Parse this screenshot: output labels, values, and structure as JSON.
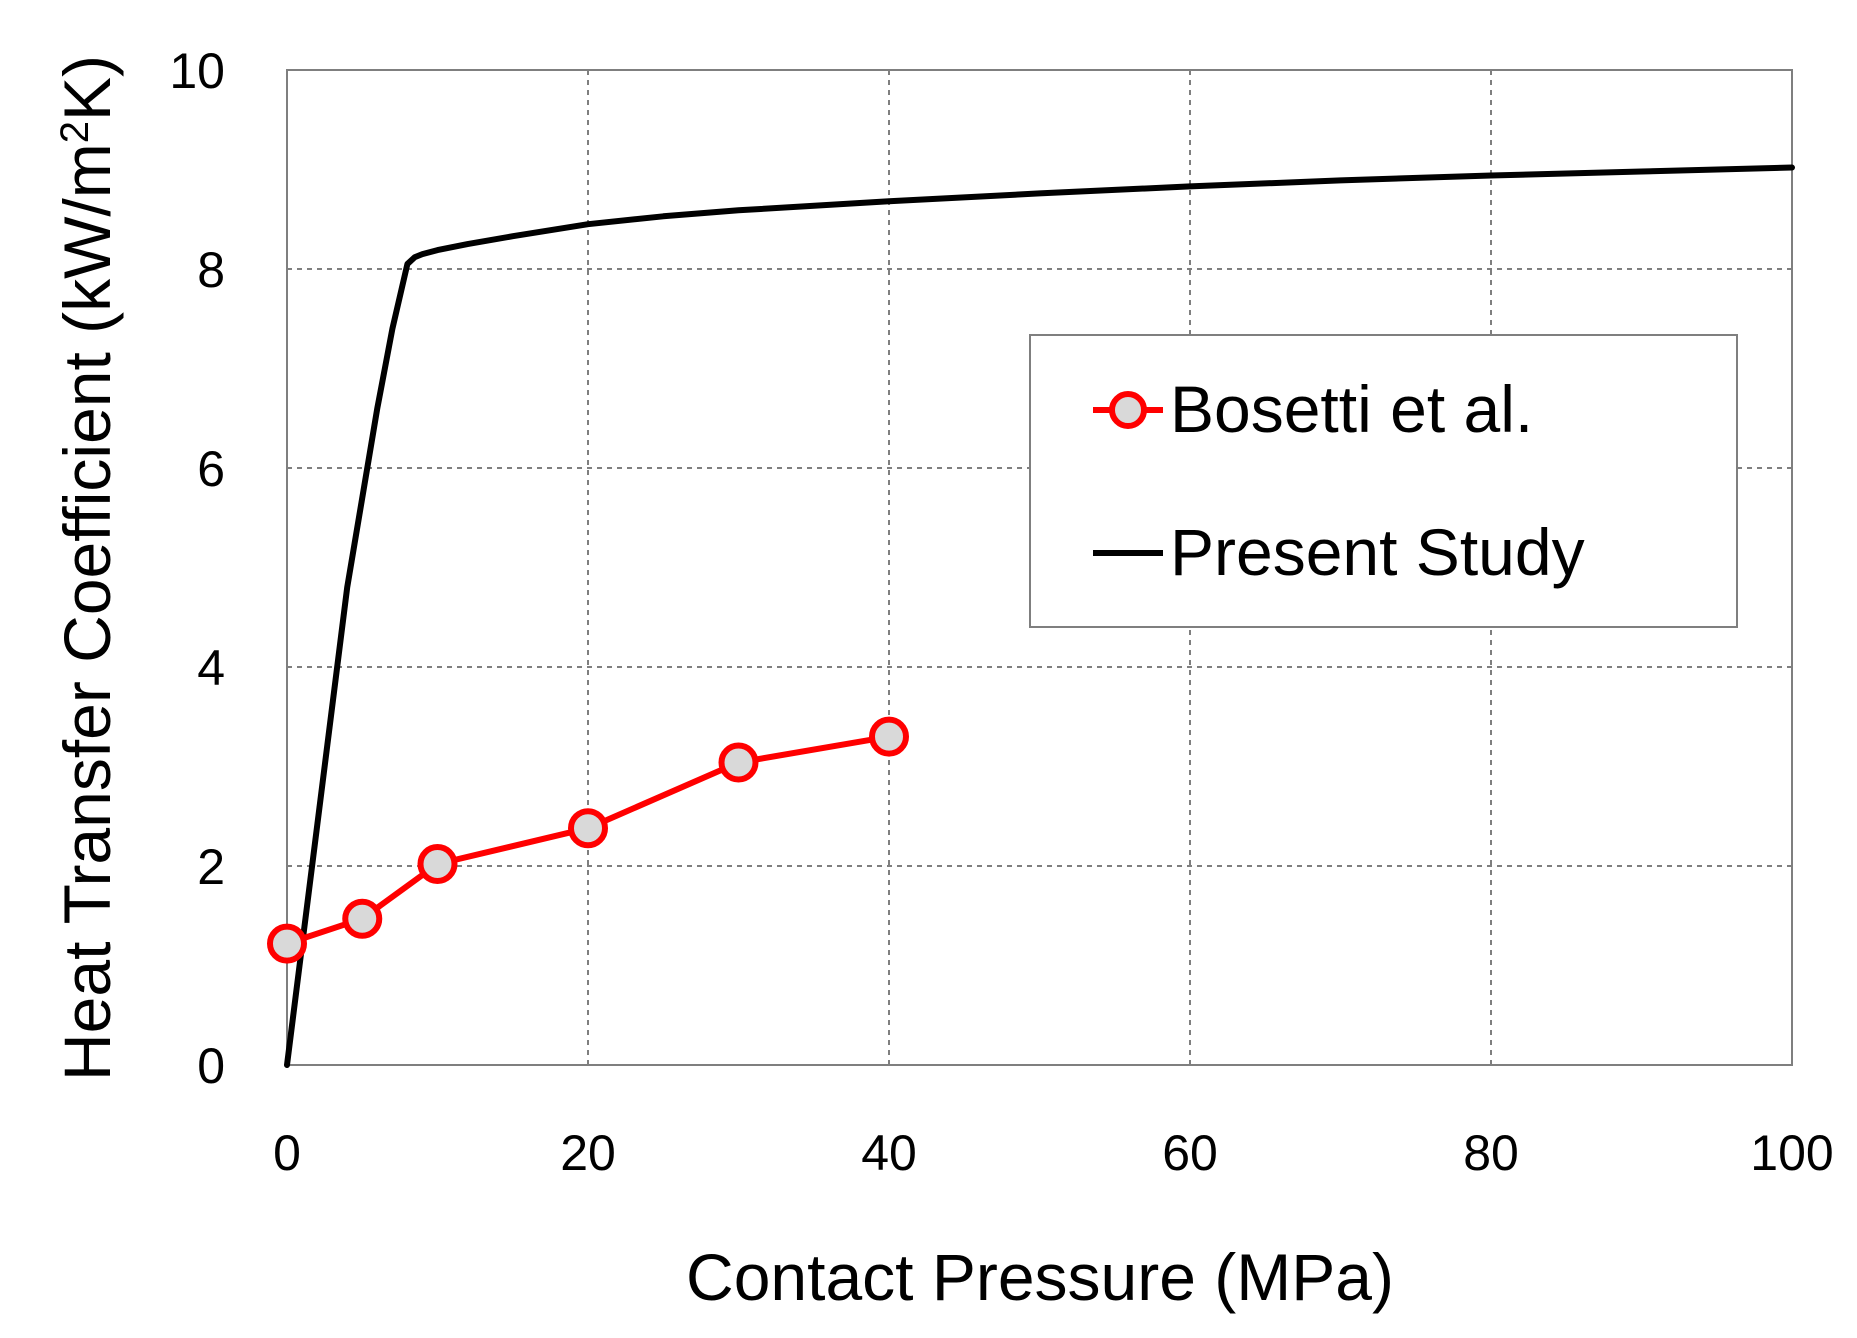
{
  "chart_data": {
    "type": "line",
    "title": "",
    "xlabel": "Contact Pressure (MPa)",
    "ylabel": "Heat Transfer Coefficient (kW/m²K)",
    "ylabel_parts": {
      "pre": "Heat Transfer Coefficient (kW/m",
      "sup": "2",
      "post": "K)"
    },
    "xlim": [
      0,
      100
    ],
    "ylim": [
      0,
      10
    ],
    "x_ticks": [
      "0",
      "20",
      "40",
      "60",
      "80",
      "100"
    ],
    "y_ticks": [
      "0",
      "2",
      "4",
      "6",
      "8",
      "10"
    ],
    "x_tick_values": [
      0,
      20,
      40,
      60,
      80,
      100
    ],
    "y_tick_values": [
      0,
      2,
      4,
      6,
      8,
      10
    ],
    "grid": true,
    "legend_position": "right, upper-middle",
    "series": [
      {
        "name": "Bosetti et al.",
        "color": "#ff0000",
        "marker": "circle",
        "marker_fill": "#d9d9d9",
        "x": [
          0,
          5,
          10,
          20,
          30,
          40
        ],
        "y": [
          1.22,
          1.47,
          2.02,
          2.38,
          3.04,
          3.3
        ]
      },
      {
        "name": "Present Study",
        "color": "#000000",
        "marker": "none",
        "x": [
          0,
          2,
          4,
          6,
          7,
          8,
          8.5,
          9,
          10,
          12,
          15,
          20,
          25,
          30,
          40,
          50,
          60,
          70,
          80,
          90,
          100
        ],
        "y": [
          0,
          2.4,
          4.8,
          6.6,
          7.4,
          8.05,
          8.12,
          8.15,
          8.19,
          8.25,
          8.33,
          8.45,
          8.53,
          8.59,
          8.68,
          8.76,
          8.83,
          8.89,
          8.94,
          8.98,
          9.02
        ]
      }
    ]
  }
}
